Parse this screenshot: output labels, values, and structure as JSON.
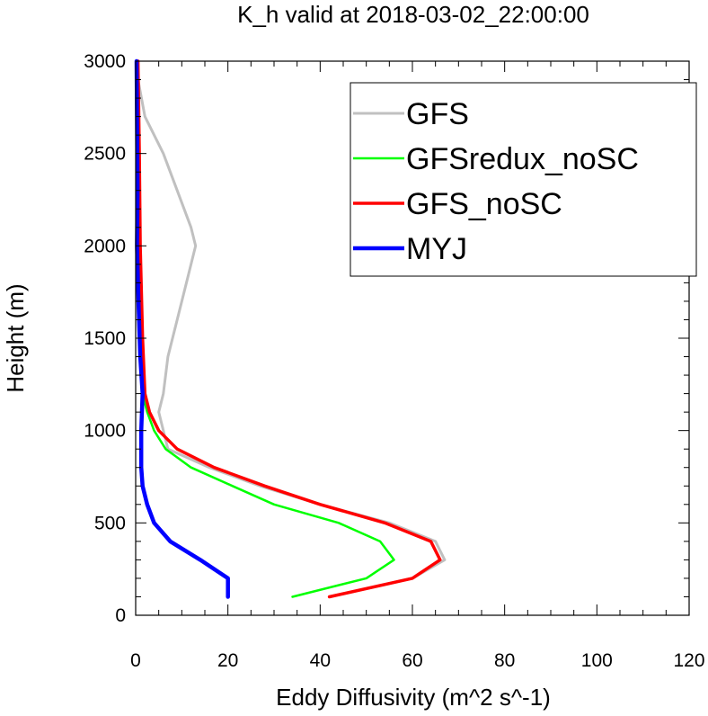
{
  "chart_data": {
    "type": "line",
    "title": "K_h valid at 2018-03-02_22:00:00",
    "xlabel": "Eddy Diffusivity (m^2 s^-1)",
    "ylabel": "Height (m)",
    "xlim": [
      0,
      120
    ],
    "ylim": [
      0,
      3000
    ],
    "xticks": [
      0,
      20,
      40,
      60,
      80,
      100,
      120
    ],
    "yticks": [
      0,
      500,
      1000,
      1500,
      2000,
      2500,
      3000
    ],
    "xtick_labels": [
      "0",
      "20",
      "40",
      "60",
      "80",
      "100",
      "120"
    ],
    "ytick_labels": [
      "0",
      "500",
      "1000",
      "1500",
      "2000",
      "2500",
      "3000"
    ],
    "grid": false,
    "legend_position": "top-right",
    "series": [
      {
        "name": "GFS",
        "color": "#c0c0c0",
        "points": [
          [
            42,
            100
          ],
          [
            60,
            200
          ],
          [
            67,
            300
          ],
          [
            65,
            400
          ],
          [
            55,
            500
          ],
          [
            40,
            600
          ],
          [
            27,
            700
          ],
          [
            16,
            800
          ],
          [
            7,
            900
          ],
          [
            6,
            1000
          ],
          [
            5,
            1100
          ],
          [
            6,
            1200
          ],
          [
            7,
            1400
          ],
          [
            9,
            1600
          ],
          [
            11,
            1800
          ],
          [
            13,
            2000
          ],
          [
            12,
            2100
          ],
          [
            9,
            2300
          ],
          [
            6,
            2500
          ],
          [
            2,
            2700
          ],
          [
            0.5,
            2900
          ],
          [
            0.3,
            3000
          ]
        ]
      },
      {
        "name": "GFSredux_noSC",
        "color": "#00ff00",
        "points": [
          [
            34,
            100
          ],
          [
            50,
            200
          ],
          [
            56,
            300
          ],
          [
            53,
            400
          ],
          [
            44,
            500
          ],
          [
            30,
            600
          ],
          [
            21,
            700
          ],
          [
            12,
            800
          ],
          [
            6.5,
            900
          ],
          [
            4,
            1000
          ],
          [
            2.5,
            1100
          ],
          [
            1.5,
            1200
          ],
          [
            1.2,
            1500
          ],
          [
            1,
            2000
          ],
          [
            0.8,
            2500
          ],
          [
            0.5,
            3000
          ]
        ]
      },
      {
        "name": "GFS_noSC",
        "color": "#ff0000",
        "points": [
          [
            42,
            100
          ],
          [
            60,
            200
          ],
          [
            66,
            300
          ],
          [
            64,
            400
          ],
          [
            54,
            500
          ],
          [
            40,
            600
          ],
          [
            28,
            700
          ],
          [
            17,
            800
          ],
          [
            9,
            900
          ],
          [
            5,
            1000
          ],
          [
            3,
            1100
          ],
          [
            2,
            1200
          ],
          [
            1.5,
            1500
          ],
          [
            1,
            2000
          ],
          [
            0.8,
            2500
          ],
          [
            0.5,
            3000
          ]
        ]
      },
      {
        "name": "MYJ",
        "color": "#0000ff",
        "points": [
          [
            20,
            100
          ],
          [
            20,
            200
          ],
          [
            14,
            300
          ],
          [
            7.5,
            400
          ],
          [
            4,
            500
          ],
          [
            2.5,
            600
          ],
          [
            1.5,
            700
          ],
          [
            1.2,
            800
          ],
          [
            1.2,
            1000
          ],
          [
            1.5,
            1200
          ],
          [
            1,
            1400
          ],
          [
            0.6,
            1700
          ],
          [
            0.3,
            2000
          ],
          [
            0.4,
            2300
          ],
          [
            0.3,
            2700
          ],
          [
            0.2,
            3000
          ]
        ]
      }
    ]
  }
}
